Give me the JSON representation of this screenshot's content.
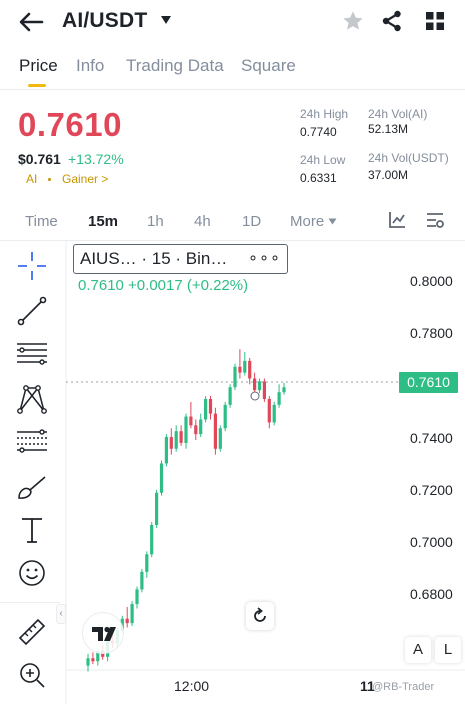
{
  "header": {
    "pair": "AI/USDT",
    "icons": [
      "back-arrow-icon",
      "caret-down-icon",
      "star-icon",
      "share-icon",
      "grid-icon"
    ]
  },
  "tabs": [
    "Price",
    "Info",
    "Trading Data",
    "Square"
  ],
  "price": {
    "last": "0.7610",
    "usd": "$0.761",
    "change": "+13.72%",
    "tags": [
      "AI",
      "Gainer >"
    ]
  },
  "stats": {
    "high_label": "24h High",
    "high_value": "0.7740",
    "low_label": "24h Low",
    "low_value": "0.6331",
    "vol_base_label": "24h Vol(AI)",
    "vol_base_value": "52.13M",
    "vol_quote_label": "24h Vol(USDT)",
    "vol_quote_value": "37.00M"
  },
  "intervals": [
    "Time",
    "15m",
    "1h",
    "4h",
    "1D",
    "More"
  ],
  "chart": {
    "legend": "AIUS… · 15 · Bin…",
    "legend_more": "∘∘∘",
    "ohlc": "0.7610  +0.0017 (+0.22%)",
    "last_tag": "0.7610",
    "scale_a": "A",
    "scale_l": "L",
    "watermark": "@RB-Trader",
    "colors": {
      "up": "#2ebd85",
      "down": "#e0485a",
      "accent": "#f0b90b"
    }
  },
  "chart_data": {
    "type": "candlestick",
    "y_ticks": [
      "0.8000",
      "0.7800",
      "0.7600",
      "0.7400",
      "0.7200",
      "0.7000",
      "0.6800"
    ],
    "x_ticks": [
      "12:00",
      "11"
    ],
    "ylim": [
      0.6645,
      0.8075
    ],
    "last_price": 0.761,
    "candles": [
      [
        0.666,
        0.67,
        0.664,
        0.6685
      ],
      [
        0.6685,
        0.6705,
        0.6665,
        0.6675
      ],
      [
        0.6675,
        0.672,
        0.666,
        0.671
      ],
      [
        0.671,
        0.673,
        0.668,
        0.669
      ],
      [
        0.669,
        0.676,
        0.6675,
        0.6745
      ],
      [
        0.6745,
        0.6775,
        0.672,
        0.6735
      ],
      [
        0.6735,
        0.679,
        0.672,
        0.678
      ],
      [
        0.678,
        0.683,
        0.677,
        0.682
      ],
      [
        0.682,
        0.686,
        0.679,
        0.6805
      ],
      [
        0.6805,
        0.688,
        0.6795,
        0.687
      ],
      [
        0.687,
        0.693,
        0.6855,
        0.692
      ],
      [
        0.692,
        0.699,
        0.691,
        0.698
      ],
      [
        0.698,
        0.705,
        0.696,
        0.704
      ],
      [
        0.704,
        0.715,
        0.703,
        0.714
      ],
      [
        0.714,
        0.726,
        0.713,
        0.725
      ],
      [
        0.725,
        0.736,
        0.724,
        0.735
      ],
      [
        0.735,
        0.745,
        0.734,
        0.744
      ],
      [
        0.744,
        0.747,
        0.738,
        0.74
      ],
      [
        0.74,
        0.748,
        0.739,
        0.746
      ],
      [
        0.746,
        0.748,
        0.741,
        0.742
      ],
      [
        0.742,
        0.752,
        0.74,
        0.751
      ],
      [
        0.751,
        0.756,
        0.747,
        0.748
      ],
      [
        0.748,
        0.75,
        0.743,
        0.745
      ],
      [
        0.745,
        0.752,
        0.744,
        0.75
      ],
      [
        0.75,
        0.758,
        0.749,
        0.757
      ],
      [
        0.757,
        0.758,
        0.75,
        0.752
      ],
      [
        0.752,
        0.754,
        0.738,
        0.74
      ],
      [
        0.74,
        0.748,
        0.739,
        0.747
      ],
      [
        0.747,
        0.756,
        0.746,
        0.755
      ],
      [
        0.755,
        0.762,
        0.754,
        0.761
      ],
      [
        0.761,
        0.769,
        0.76,
        0.768
      ],
      [
        0.768,
        0.774,
        0.764,
        0.766
      ],
      [
        0.766,
        0.773,
        0.765,
        0.77
      ],
      [
        0.77,
        0.771,
        0.762,
        0.764
      ],
      [
        0.764,
        0.766,
        0.758,
        0.76
      ],
      [
        0.76,
        0.764,
        0.759,
        0.763
      ],
      [
        0.763,
        0.764,
        0.756,
        0.757
      ],
      [
        0.757,
        0.758,
        0.747,
        0.749
      ],
      [
        0.749,
        0.756,
        0.748,
        0.755
      ],
      [
        0.755,
        0.762,
        0.754,
        0.7593
      ],
      [
        0.7593,
        0.7625,
        0.7585,
        0.761
      ]
    ]
  }
}
